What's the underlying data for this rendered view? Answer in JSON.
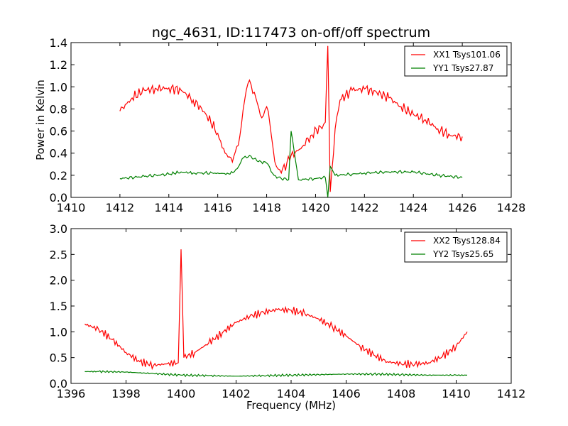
{
  "chart_data": [
    {
      "type": "line",
      "title": "ngc_4631, ID:117473 on-off/off spectrum",
      "xlabel": "",
      "ylabel": "Power in Kelvin",
      "xlim": [
        1410,
        1428
      ],
      "ylim": [
        0.0,
        1.4
      ],
      "x_ticks": [
        "1410",
        "1412",
        "1414",
        "1416",
        "1418",
        "1420",
        "1422",
        "1424",
        "1426",
        "1428"
      ],
      "y_ticks": [
        "0.0",
        "0.2",
        "0.4",
        "0.6",
        "0.8",
        "1.0",
        "1.2",
        "1.4"
      ],
      "grid": false,
      "legend_position": "top-right",
      "series": [
        {
          "name": "XX1 Tsys101.06",
          "color": "#ff0000",
          "x": [
            1412.0,
            1412.5,
            1413.0,
            1413.5,
            1414.0,
            1414.5,
            1415.0,
            1415.5,
            1416.0,
            1416.3,
            1416.6,
            1416.9,
            1417.1,
            1417.3,
            1417.5,
            1417.8,
            1418.0,
            1418.2,
            1418.4,
            1418.6,
            1419.0,
            1419.4,
            1419.8,
            1420.2,
            1420.4,
            1420.5,
            1420.6,
            1420.8,
            1421.0,
            1421.5,
            1422.0,
            1422.5,
            1423.0,
            1423.5,
            1424.0,
            1424.5,
            1425.0,
            1425.5,
            1426.0
          ],
          "y": [
            0.78,
            0.9,
            0.97,
            0.98,
            0.99,
            0.97,
            0.88,
            0.76,
            0.58,
            0.4,
            0.32,
            0.55,
            0.88,
            1.06,
            0.95,
            0.72,
            0.82,
            0.55,
            0.28,
            0.22,
            0.38,
            0.44,
            0.56,
            0.64,
            0.68,
            1.37,
            0.05,
            0.62,
            0.88,
            0.97,
            0.98,
            0.95,
            0.9,
            0.82,
            0.75,
            0.7,
            0.62,
            0.56,
            0.55
          ]
        },
        {
          "name": "YY1 Tsys27.87",
          "color": "#008000",
          "x": [
            1412.0,
            1413.0,
            1414.0,
            1414.5,
            1415.0,
            1416.0,
            1416.5,
            1416.8,
            1417.0,
            1417.3,
            1417.6,
            1418.0,
            1418.3,
            1418.6,
            1418.9,
            1419.0,
            1419.3,
            1420.0,
            1420.4,
            1420.5,
            1420.6,
            1420.8,
            1421.5,
            1422.0,
            1423.0,
            1424.0,
            1425.0,
            1426.0
          ],
          "y": [
            0.17,
            0.19,
            0.21,
            0.23,
            0.22,
            0.22,
            0.21,
            0.26,
            0.35,
            0.38,
            0.33,
            0.31,
            0.2,
            0.17,
            0.16,
            0.6,
            0.16,
            0.17,
            0.18,
            0.0,
            0.28,
            0.2,
            0.21,
            0.22,
            0.23,
            0.23,
            0.2,
            0.18
          ]
        }
      ]
    },
    {
      "type": "line",
      "title": "",
      "xlabel": "Frequency (MHz)",
      "ylabel": "",
      "xlim": [
        1396,
        1412
      ],
      "ylim": [
        0.0,
        3.0
      ],
      "x_ticks": [
        "1396",
        "1398",
        "1400",
        "1402",
        "1404",
        "1406",
        "1408",
        "1410",
        "1412"
      ],
      "y_ticks": [
        "0.0",
        "0.5",
        "1.0",
        "1.5",
        "2.0",
        "2.5",
        "3.0"
      ],
      "grid": false,
      "legend_position": "top-right",
      "series": [
        {
          "name": "XX2 Tsys128.84",
          "color": "#ff0000",
          "x": [
            1396.5,
            1397.0,
            1397.5,
            1398.0,
            1398.5,
            1399.0,
            1399.5,
            1399.9,
            1400.0,
            1400.1,
            1400.5,
            1401.0,
            1401.5,
            1402.0,
            1402.5,
            1403.0,
            1403.5,
            1404.0,
            1404.5,
            1405.0,
            1405.5,
            1406.0,
            1406.5,
            1407.0,
            1407.5,
            1408.0,
            1408.5,
            1409.0,
            1409.5,
            1410.0,
            1410.4
          ],
          "y": [
            1.15,
            1.05,
            0.85,
            0.6,
            0.42,
            0.35,
            0.38,
            0.4,
            2.6,
            0.5,
            0.6,
            0.78,
            0.98,
            1.18,
            1.3,
            1.38,
            1.43,
            1.42,
            1.35,
            1.25,
            1.1,
            0.92,
            0.72,
            0.55,
            0.42,
            0.38,
            0.37,
            0.4,
            0.52,
            0.72,
            1.0
          ]
        },
        {
          "name": "YY2 Tsys25.65",
          "color": "#008000",
          "x": [
            1396.5,
            1397.0,
            1398.0,
            1399.0,
            1400.0,
            1401.0,
            1402.0,
            1403.0,
            1404.0,
            1405.0,
            1406.0,
            1407.0,
            1408.0,
            1409.0,
            1410.0,
            1410.4
          ],
          "y": [
            0.23,
            0.23,
            0.22,
            0.19,
            0.16,
            0.15,
            0.14,
            0.15,
            0.16,
            0.17,
            0.18,
            0.18,
            0.17,
            0.16,
            0.16,
            0.16
          ]
        }
      ]
    }
  ]
}
